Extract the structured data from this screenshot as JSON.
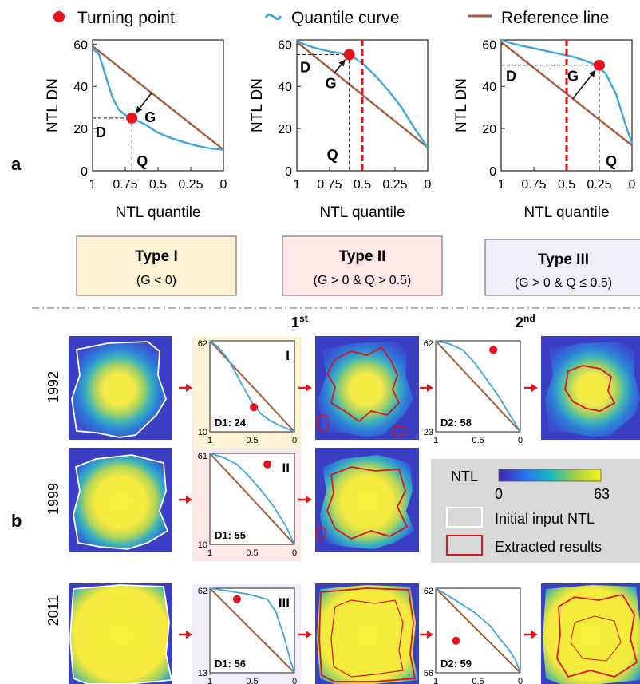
{
  "legend": {
    "turning_point": "Turning point",
    "quantile_curve": "Quantile curve",
    "reference_line": "Reference line",
    "colors": {
      "point": "#e8121a",
      "curve": "#3fa6dc",
      "reference": "#a65a3a"
    }
  },
  "panel_a": {
    "label": "a",
    "ylabel": "NTL DN",
    "xlabel": "NTL quantile",
    "yticks": [
      "0",
      "20",
      "40",
      "60"
    ],
    "xticks": [
      "1",
      "0.75",
      "0.5",
      "0.25",
      "0"
    ],
    "marks": {
      "D": "D",
      "G": "G",
      "Q": "Q"
    },
    "charts": [
      {
        "curve": [
          [
            1,
            58
          ],
          [
            0.95,
            55
          ],
          [
            0.9,
            45
          ],
          [
            0.85,
            35
          ],
          [
            0.8,
            29
          ],
          [
            0.75,
            26.5
          ],
          [
            0.7,
            25
          ],
          [
            0.6,
            22
          ],
          [
            0.5,
            18
          ],
          [
            0.4,
            15.5
          ],
          [
            0.3,
            13.5
          ],
          [
            0.2,
            11.8
          ],
          [
            0.1,
            10.6
          ],
          [
            0,
            10
          ]
        ],
        "ref": [
          [
            1,
            59
          ],
          [
            0,
            10
          ]
        ],
        "point": [
          0.7,
          25
        ]
      },
      {
        "curve": [
          [
            1,
            62
          ],
          [
            0.95,
            60
          ],
          [
            0.85,
            58
          ],
          [
            0.75,
            56.5
          ],
          [
            0.65,
            55.5
          ],
          [
            0.6,
            55
          ],
          [
            0.55,
            53
          ],
          [
            0.5,
            51
          ],
          [
            0.4,
            45
          ],
          [
            0.3,
            38
          ],
          [
            0.2,
            30
          ],
          [
            0.1,
            20
          ],
          [
            0,
            11
          ]
        ],
        "ref": [
          [
            1,
            61
          ],
          [
            0,
            11
          ]
        ],
        "point": [
          0.6,
          55
        ],
        "dashed_x": 0.5
      },
      {
        "curve": [
          [
            1,
            62
          ],
          [
            0.9,
            60
          ],
          [
            0.75,
            58
          ],
          [
            0.6,
            56
          ],
          [
            0.45,
            54
          ],
          [
            0.35,
            52
          ],
          [
            0.27,
            50
          ],
          [
            0.2,
            46
          ],
          [
            0.12,
            36
          ],
          [
            0.05,
            22
          ],
          [
            0,
            13
          ]
        ],
        "ref": [
          [
            1,
            61
          ],
          [
            0,
            12
          ]
        ],
        "point": [
          0.25,
          50
        ],
        "dashed_x": 0.5
      }
    ]
  },
  "types": [
    {
      "title": "Type I",
      "cond": "(G < 0)",
      "bg": "#fdf3d4"
    },
    {
      "title": "Type II",
      "cond": "(G > 0  &  Q > 0.5)",
      "bg": "#fde8e7"
    },
    {
      "title": "Type III",
      "cond": "(G > 0  &  Q ≤ 0.5)",
      "bg": "#f1eefa"
    }
  ],
  "panel_b": {
    "label": "b",
    "first": "1",
    "first_sup": "st",
    "second": "2",
    "second_sup": "nd",
    "rows": [
      {
        "year": "1992",
        "c1": {
          "ymax": "62",
          "ymin": "10",
          "type": "I",
          "d": "D1: 24",
          "bg": "#fdf3d4",
          "point": [
            0.52,
            0.27
          ]
        },
        "c2": {
          "ymax": "62",
          "ymin": "23",
          "d": "D2: 58",
          "point": [
            0.68,
            0.9
          ]
        }
      },
      {
        "year": "1999",
        "c1": {
          "ymax": "61",
          "ymin": "10",
          "type": "II",
          "d": "D1: 55",
          "bg": "#fde8e7",
          "point": [
            0.68,
            0.88
          ]
        }
      },
      {
        "year": "2011",
        "c1": {
          "ymax": "62",
          "ymin": "13",
          "type": "III",
          "d": "D1: 56",
          "bg": "#f1eefa",
          "point": [
            0.32,
            0.87
          ]
        },
        "c2": {
          "ymax": "62",
          "ymin": "56",
          "d": "D2: 59",
          "point": [
            0.24,
            0.38
          ]
        }
      }
    ],
    "xticks": [
      "1",
      "0.5",
      "0"
    ],
    "colorbar": {
      "title": "NTL",
      "min": "0",
      "max": "63"
    },
    "legend_initial": "Initial input NTL",
    "legend_extracted": "Extracted results"
  }
}
